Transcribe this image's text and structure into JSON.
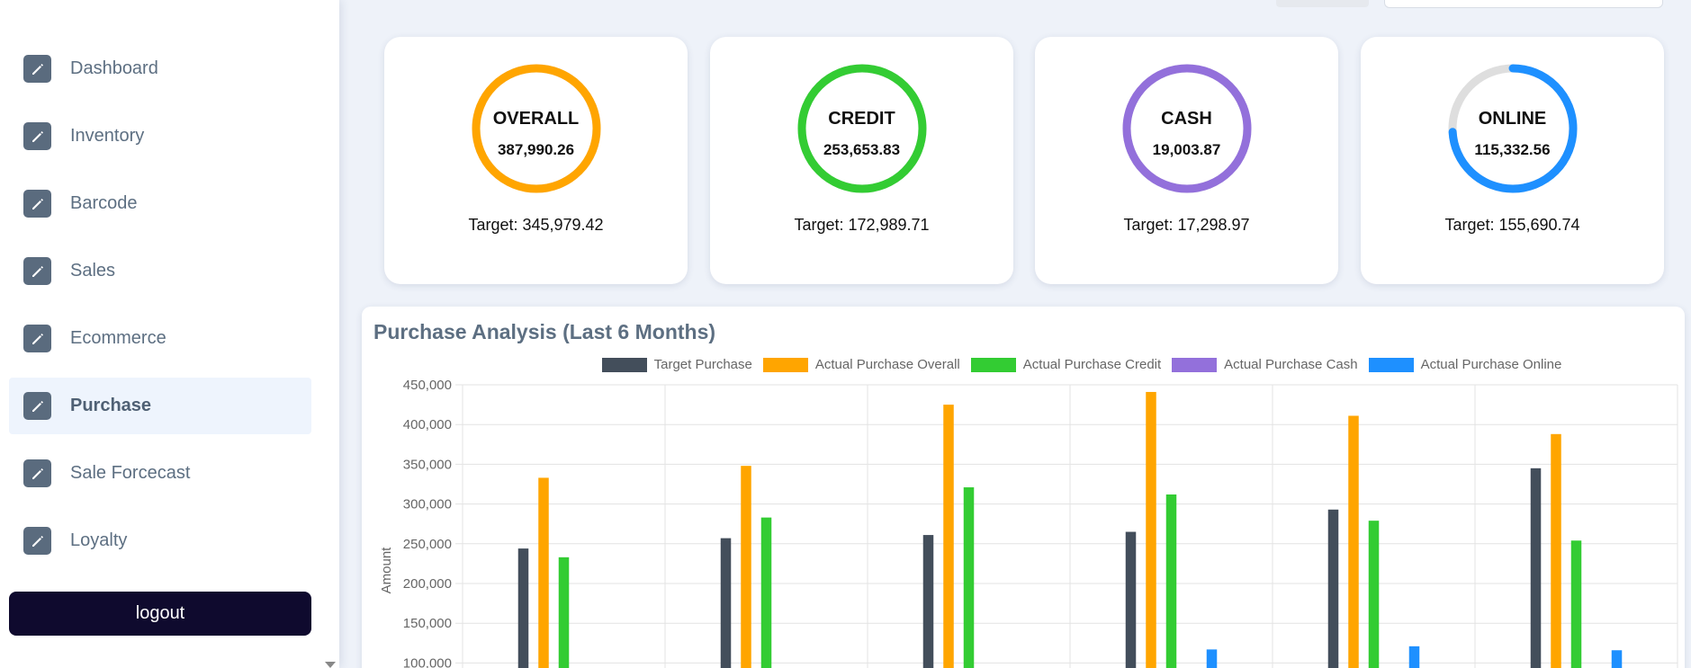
{
  "sidebar": {
    "items": [
      {
        "label": "Dashboard",
        "icon": "pencil-icon"
      },
      {
        "label": "Inventory",
        "icon": "pencil-icon"
      },
      {
        "label": "Barcode",
        "icon": "pencil-icon"
      },
      {
        "label": "Sales",
        "icon": "pencil-icon"
      },
      {
        "label": "Ecommerce",
        "icon": "pencil-icon"
      },
      {
        "label": "Purchase",
        "icon": "pencil-icon",
        "active": true
      },
      {
        "label": "Sale Forcecast",
        "icon": "pencil-icon"
      },
      {
        "label": "Loyalty",
        "icon": "pencil-icon"
      }
    ],
    "logout_label": "logout"
  },
  "kpis": [
    {
      "name": "OVERALL",
      "value": "387,990.26",
      "target": "Target: 345,979.42",
      "color": "#ffa500",
      "progress": 1.0
    },
    {
      "name": "CREDIT",
      "value": "253,653.83",
      "target": "Target: 172,989.71",
      "color": "#33cc33",
      "progress": 1.0
    },
    {
      "name": "CASH",
      "value": "19,003.87",
      "target": "Target: 17,298.97",
      "color": "#9370db",
      "progress": 1.0
    },
    {
      "name": "ONLINE",
      "value": "115,332.56",
      "target": "Target: 155,690.74",
      "color": "#1e90ff",
      "progress": 0.7408
    }
  ],
  "chart_data": {
    "type": "bar",
    "title": "Purchase Analysis (Last 6 Months)",
    "ylabel": "Amount",
    "xlabel": "",
    "categories": [
      "",
      "",
      "",
      "",
      "",
      ""
    ],
    "yticks": [
      "450,000",
      "400,000",
      "350,000",
      "300,000",
      "250,000",
      "200,000",
      "150,000",
      "100,000"
    ],
    "ylim_visible": [
      100000,
      450000
    ],
    "grid": true,
    "legend_position": "top",
    "series": [
      {
        "name": "Target Purchase",
        "color": "#434e5b",
        "values": [
          244000,
          257000,
          261000,
          265000,
          293000,
          345000
        ]
      },
      {
        "name": "Actual Purchase Overall",
        "color": "#ffa500",
        "values": [
          333000,
          348000,
          425000,
          441000,
          411000,
          388000
        ]
      },
      {
        "name": "Actual Purchase Credit",
        "color": "#33cc33",
        "values": [
          233000,
          283000,
          321000,
          312000,
          279000,
          254000
        ]
      },
      {
        "name": "Actual Purchase Cash",
        "color": "#9370db",
        "values": [
          0,
          0,
          0,
          0,
          0,
          0
        ]
      },
      {
        "name": "Actual Purchase Online",
        "color": "#1e90ff",
        "values": [
          0,
          0,
          0,
          117000,
          121000,
          116000
        ]
      }
    ]
  }
}
